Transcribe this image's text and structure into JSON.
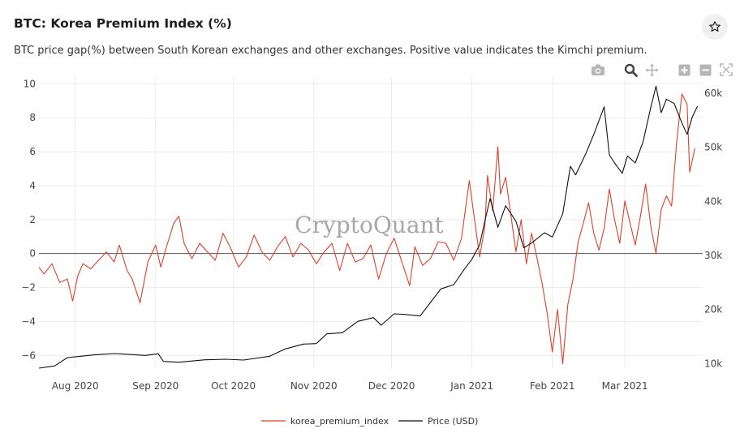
{
  "header": {
    "title": "BTC: Korea Premium Index (%)",
    "subtitle": "BTC price gap(%) between South Korean exchanges and other exchanges. Positive value indicates the Kimchi premium."
  },
  "toolbar": {
    "icons": [
      "camera-icon",
      "zoom-icon",
      "pan-icon",
      "zoom-in-icon",
      "zoom-out-icon",
      "autoscale-icon"
    ]
  },
  "watermark": "CryptoQuant",
  "colors": {
    "premium": "#e0402a",
    "price": "#111111",
    "grid": "#ececec",
    "zero": "#555555"
  },
  "chart_data": {
    "type": "line",
    "grid": true,
    "legend_position": "bottom",
    "x_range": [
      "2020-07-18",
      "2021-03-31"
    ],
    "x_ticks": [
      {
        "date": "2020-08-01",
        "label": "Aug 2020"
      },
      {
        "date": "2020-09-01",
        "label": "Sep 2020"
      },
      {
        "date": "2020-10-01",
        "label": "Oct 2020"
      },
      {
        "date": "2020-11-01",
        "label": "Nov 2020"
      },
      {
        "date": "2020-12-01",
        "label": "Dec 2020"
      },
      {
        "date": "2021-01-01",
        "label": "Jan 2021"
      },
      {
        "date": "2021-02-01",
        "label": "Feb 2021"
      },
      {
        "date": "2021-03-01",
        "label": "Mar 2021"
      }
    ],
    "y_left": {
      "range": [
        -6.8,
        10.4
      ],
      "ticks": [
        -6,
        -4,
        -2,
        0,
        2,
        4,
        6,
        8,
        10
      ],
      "tick_labels": [
        "−6",
        "−4",
        "−2",
        "0",
        "2",
        "4",
        "6",
        "8",
        "10"
      ]
    },
    "y_right": {
      "range": [
        9000,
        63000
      ],
      "ticks": [
        10000,
        20000,
        30000,
        40000,
        50000,
        60000
      ],
      "tick_labels": [
        "10k",
        "20k",
        "30k",
        "40k",
        "50k",
        "60k"
      ]
    },
    "series": [
      {
        "name": "korea_premium_index",
        "axis": "left",
        "points": [
          [
            "2020-07-18",
            -0.8
          ],
          [
            "2020-07-20",
            -1.2
          ],
          [
            "2020-07-23",
            -0.6
          ],
          [
            "2020-07-26",
            -1.7
          ],
          [
            "2020-07-29",
            -1.5
          ],
          [
            "2020-07-31",
            -2.8
          ],
          [
            "2020-08-02",
            -1.3
          ],
          [
            "2020-08-04",
            -0.6
          ],
          [
            "2020-08-07",
            -0.9
          ],
          [
            "2020-08-10",
            -0.4
          ],
          [
            "2020-08-13",
            0.1
          ],
          [
            "2020-08-16",
            -0.5
          ],
          [
            "2020-08-18",
            0.5
          ],
          [
            "2020-08-21",
            -1.0
          ],
          [
            "2020-08-23",
            -1.5
          ],
          [
            "2020-08-26",
            -2.9
          ],
          [
            "2020-08-29",
            -0.5
          ],
          [
            "2020-09-01",
            0.5
          ],
          [
            "2020-09-03",
            -0.8
          ],
          [
            "2020-09-05",
            0.3
          ],
          [
            "2020-09-08",
            1.8
          ],
          [
            "2020-09-10",
            2.2
          ],
          [
            "2020-09-12",
            0.6
          ],
          [
            "2020-09-15",
            -0.3
          ],
          [
            "2020-09-18",
            0.6
          ],
          [
            "2020-09-21",
            0.1
          ],
          [
            "2020-09-24",
            -0.4
          ],
          [
            "2020-09-27",
            1.2
          ],
          [
            "2020-09-30",
            0.3
          ],
          [
            "2020-10-03",
            -0.8
          ],
          [
            "2020-10-06",
            -0.2
          ],
          [
            "2020-10-09",
            1.1
          ],
          [
            "2020-10-12",
            0.1
          ],
          [
            "2020-10-15",
            -0.4
          ],
          [
            "2020-10-18",
            0.4
          ],
          [
            "2020-10-21",
            1.0
          ],
          [
            "2020-10-24",
            -0.2
          ],
          [
            "2020-10-27",
            0.6
          ],
          [
            "2020-10-30",
            0.2
          ],
          [
            "2020-11-02",
            -0.6
          ],
          [
            "2020-11-05",
            0.1
          ],
          [
            "2020-11-08",
            0.6
          ],
          [
            "2020-11-11",
            -1.0
          ],
          [
            "2020-11-14",
            0.6
          ],
          [
            "2020-11-17",
            -0.5
          ],
          [
            "2020-11-20",
            -0.3
          ],
          [
            "2020-11-23",
            0.5
          ],
          [
            "2020-11-26",
            -1.5
          ],
          [
            "2020-11-29",
            0.0
          ],
          [
            "2020-12-02",
            0.9
          ],
          [
            "2020-12-05",
            -0.5
          ],
          [
            "2020-12-08",
            -1.9
          ],
          [
            "2020-12-10",
            0.4
          ],
          [
            "2020-12-13",
            -0.7
          ],
          [
            "2020-12-16",
            -0.3
          ],
          [
            "2020-12-19",
            0.7
          ],
          [
            "2020-12-22",
            0.6
          ],
          [
            "2020-12-25",
            -0.4
          ],
          [
            "2020-12-28",
            0.9
          ],
          [
            "2020-12-31",
            4.3
          ],
          [
            "2021-01-02",
            2.0
          ],
          [
            "2021-01-04",
            -0.2
          ],
          [
            "2021-01-06",
            1.6
          ],
          [
            "2021-01-07",
            4.6
          ],
          [
            "2021-01-09",
            2.5
          ],
          [
            "2021-01-11",
            6.3
          ],
          [
            "2021-01-12",
            3.5
          ],
          [
            "2021-01-14",
            4.5
          ],
          [
            "2021-01-16",
            2.3
          ],
          [
            "2021-01-18",
            0.1
          ],
          [
            "2021-01-20",
            2.0
          ],
          [
            "2021-01-22",
            -0.6
          ],
          [
            "2021-01-24",
            1.2
          ],
          [
            "2021-01-26",
            -0.2
          ],
          [
            "2021-01-28",
            -1.7
          ],
          [
            "2021-01-30",
            -3.5
          ],
          [
            "2021-02-01",
            -5.8
          ],
          [
            "2021-02-03",
            -3.3
          ],
          [
            "2021-02-05",
            -6.5
          ],
          [
            "2021-02-07",
            -3.0
          ],
          [
            "2021-02-09",
            -1.5
          ],
          [
            "2021-02-11",
            0.7
          ],
          [
            "2021-02-13",
            1.8
          ],
          [
            "2021-02-15",
            3.0
          ],
          [
            "2021-02-17",
            1.2
          ],
          [
            "2021-02-19",
            0.2
          ],
          [
            "2021-02-21",
            1.5
          ],
          [
            "2021-02-23",
            3.8
          ],
          [
            "2021-02-25",
            2.0
          ],
          [
            "2021-02-27",
            0.6
          ],
          [
            "2021-03-01",
            3.1
          ],
          [
            "2021-03-03",
            1.8
          ],
          [
            "2021-03-05",
            0.5
          ],
          [
            "2021-03-07",
            2.2
          ],
          [
            "2021-03-09",
            4.1
          ],
          [
            "2021-03-11",
            1.6
          ],
          [
            "2021-03-13",
            0.0
          ],
          [
            "2021-03-15",
            2.6
          ],
          [
            "2021-03-17",
            3.4
          ],
          [
            "2021-03-19",
            2.8
          ],
          [
            "2021-03-21",
            6.6
          ],
          [
            "2021-03-23",
            9.4
          ],
          [
            "2021-03-25",
            8.8
          ],
          [
            "2021-03-26",
            4.8
          ],
          [
            "2021-03-28",
            6.2
          ]
        ]
      },
      {
        "name": "Price (USD)",
        "axis": "right",
        "points": [
          [
            "2020-07-18",
            9150
          ],
          [
            "2020-07-24",
            9550
          ],
          [
            "2020-07-29",
            11100
          ],
          [
            "2020-08-02",
            11300
          ],
          [
            "2020-08-08",
            11600
          ],
          [
            "2020-08-16",
            11850
          ],
          [
            "2020-08-20",
            11750
          ],
          [
            "2020-08-28",
            11500
          ],
          [
            "2020-09-02",
            11800
          ],
          [
            "2020-09-04",
            10400
          ],
          [
            "2020-09-10",
            10250
          ],
          [
            "2020-09-20",
            10700
          ],
          [
            "2020-09-28",
            10800
          ],
          [
            "2020-10-05",
            10650
          ],
          [
            "2020-10-15",
            11350
          ],
          [
            "2020-10-21",
            12700
          ],
          [
            "2020-10-28",
            13600
          ],
          [
            "2020-11-02",
            13700
          ],
          [
            "2020-11-06",
            15500
          ],
          [
            "2020-11-12",
            15700
          ],
          [
            "2020-11-18",
            17800
          ],
          [
            "2020-11-24",
            18500
          ],
          [
            "2020-11-27",
            17100
          ],
          [
            "2020-12-02",
            19200
          ],
          [
            "2020-12-06",
            19100
          ],
          [
            "2020-12-12",
            18800
          ],
          [
            "2020-12-16",
            21300
          ],
          [
            "2020-12-20",
            23800
          ],
          [
            "2020-12-25",
            24600
          ],
          [
            "2020-12-29",
            27400
          ],
          [
            "2021-01-01",
            29300
          ],
          [
            "2021-01-04",
            32000
          ],
          [
            "2021-01-06",
            36400
          ],
          [
            "2021-01-08",
            40500
          ],
          [
            "2021-01-11",
            35200
          ],
          [
            "2021-01-14",
            39200
          ],
          [
            "2021-01-18",
            36300
          ],
          [
            "2021-01-21",
            31400
          ],
          [
            "2021-01-24",
            32300
          ],
          [
            "2021-01-29",
            34200
          ],
          [
            "2021-02-01",
            33400
          ],
          [
            "2021-02-05",
            37700
          ],
          [
            "2021-02-08",
            46500
          ],
          [
            "2021-02-10",
            44900
          ],
          [
            "2021-02-14",
            48900
          ],
          [
            "2021-02-17",
            52400
          ],
          [
            "2021-02-21",
            57500
          ],
          [
            "2021-02-23",
            48600
          ],
          [
            "2021-02-25",
            47100
          ],
          [
            "2021-02-28",
            45200
          ],
          [
            "2021-03-02",
            48400
          ],
          [
            "2021-03-05",
            47100
          ],
          [
            "2021-03-08",
            51000
          ],
          [
            "2021-03-11",
            57400
          ],
          [
            "2021-03-13",
            61300
          ],
          [
            "2021-03-15",
            56400
          ],
          [
            "2021-03-17",
            58900
          ],
          [
            "2021-03-20",
            58100
          ],
          [
            "2021-03-23",
            54500
          ],
          [
            "2021-03-25",
            52400
          ],
          [
            "2021-03-27",
            55600
          ],
          [
            "2021-03-29",
            57600
          ]
        ]
      }
    ]
  }
}
